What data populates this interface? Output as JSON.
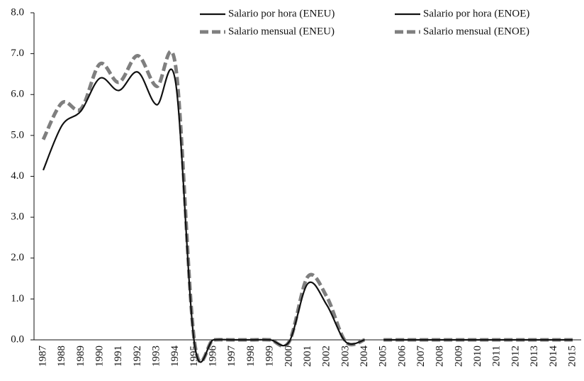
{
  "chart_data": {
    "type": "line",
    "categories": [
      "1987",
      "1988",
      "1989",
      "1990",
      "1991",
      "1992",
      "1993",
      "1994",
      "1995",
      "1996",
      "1997",
      "1998",
      "1999",
      "2000",
      "2001",
      "2002",
      "2003",
      "2004",
      "2005",
      "2006",
      "2007",
      "2008",
      "2009",
      "2010",
      "2011",
      "2012",
      "2013",
      "2014",
      "2015"
    ],
    "series": [
      {
        "name": "Salario por hora (ENEU)",
        "color": "#111111",
        "dash": false,
        "values": [
          4.15,
          5.25,
          5.6,
          6.4,
          6.1,
          6.55,
          5.75,
          6.3,
          -0.1,
          0,
          0,
          0,
          0,
          -0.05,
          1.38,
          0.85,
          -0.05,
          0,
          null,
          null,
          null,
          null,
          null,
          null,
          null,
          null,
          null,
          null,
          null
        ]
      },
      {
        "name": "Salario mensual (ENEU)",
        "color": "#7f7f7f",
        "dash": true,
        "values": [
          4.9,
          5.8,
          5.65,
          6.75,
          6.3,
          6.95,
          6.2,
          6.7,
          -0.05,
          0,
          0,
          0,
          0,
          -0.05,
          1.55,
          1.05,
          -0.05,
          0,
          null,
          null,
          null,
          null,
          null,
          null,
          null,
          null,
          null,
          null,
          null
        ]
      },
      {
        "name": "Salario por hora (ENOE)",
        "color": "#111111",
        "dash": false,
        "values": [
          null,
          null,
          null,
          null,
          null,
          null,
          null,
          null,
          null,
          null,
          null,
          null,
          null,
          null,
          null,
          null,
          null,
          null,
          0,
          0,
          0,
          0,
          0,
          0,
          0,
          0,
          0,
          0,
          0
        ]
      },
      {
        "name": "Salario mensual (ENOE)",
        "color": "#7f7f7f",
        "dash": true,
        "values": [
          null,
          null,
          null,
          null,
          null,
          null,
          null,
          null,
          null,
          null,
          null,
          null,
          null,
          null,
          null,
          null,
          null,
          null,
          0,
          0,
          0,
          0,
          0,
          0,
          0,
          0,
          0,
          0,
          0
        ]
      }
    ],
    "ylim": [
      0,
      8
    ],
    "yticks": [
      {
        "value": 0,
        "label": "0.0"
      },
      {
        "value": 1,
        "label": "1.0"
      },
      {
        "value": 2,
        "label": "2.0"
      },
      {
        "value": 3,
        "label": "3.0"
      },
      {
        "value": 4,
        "label": "4.0"
      },
      {
        "value": 5,
        "label": "5.0"
      },
      {
        "value": 6,
        "label": "6.0"
      },
      {
        "value": 7,
        "label": "7.0"
      },
      {
        "value": 8,
        "label": "8.0"
      }
    ],
    "grid": false,
    "legend": "top-right"
  }
}
